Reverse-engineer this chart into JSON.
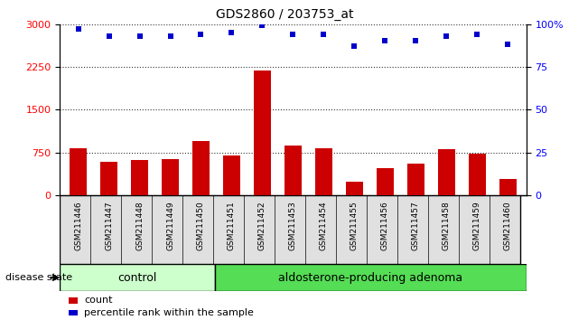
{
  "title": "GDS2860 / 203753_at",
  "samples": [
    "GSM211446",
    "GSM211447",
    "GSM211448",
    "GSM211449",
    "GSM211450",
    "GSM211451",
    "GSM211452",
    "GSM211453",
    "GSM211454",
    "GSM211455",
    "GSM211456",
    "GSM211457",
    "GSM211458",
    "GSM211459",
    "GSM211460"
  ],
  "counts": [
    820,
    580,
    620,
    640,
    950,
    700,
    2180,
    870,
    820,
    230,
    480,
    550,
    800,
    730,
    280
  ],
  "percentiles": [
    97,
    93,
    93,
    93,
    94,
    95,
    99,
    94,
    94,
    87,
    90,
    90,
    93,
    94,
    88
  ],
  "control_count": 5,
  "adenoma_count": 10,
  "control_label": "control",
  "adenoma_label": "aldosterone-producing adenoma",
  "disease_state_label": "disease state",
  "count_label": "count",
  "percentile_label": "percentile rank within the sample",
  "ylim_left": [
    0,
    3000
  ],
  "ylim_right": [
    0,
    100
  ],
  "yticks_left": [
    0,
    750,
    1500,
    2250,
    3000
  ],
  "yticks_right": [
    0,
    25,
    50,
    75,
    100
  ],
  "bar_color": "#cc0000",
  "scatter_color": "#0000cc",
  "control_bg": "#ccffcc",
  "adenoma_bg": "#55dd55",
  "bar_width": 0.55,
  "grid_color": "black",
  "grid_alpha": 0.8
}
